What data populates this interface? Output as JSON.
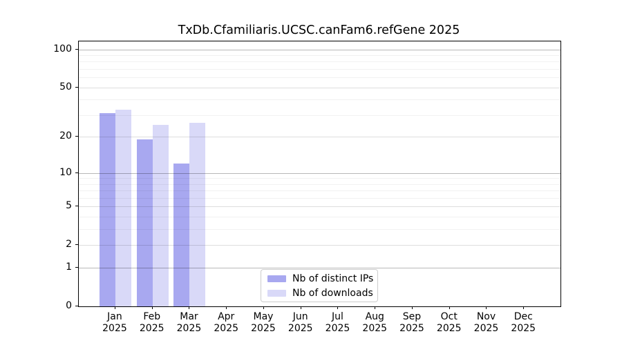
{
  "title": "TxDb.Cfamiliaris.UCSC.canFam6.refGene 2025",
  "chart_data": {
    "type": "bar",
    "title": "TxDb.Cfamiliaris.UCSC.canFam6.refGene 2025",
    "months": [
      "Jan",
      "Feb",
      "Mar",
      "Apr",
      "May",
      "Jun",
      "Jul",
      "Aug",
      "Sep",
      "Oct",
      "Nov",
      "Dec"
    ],
    "year": "2025",
    "series": [
      {
        "name": "Nb of distinct IPs",
        "color": "#a8a8f0",
        "values": [
          31,
          19,
          12,
          0,
          0,
          0,
          0,
          0,
          0,
          0,
          0,
          0
        ]
      },
      {
        "name": "Nb of downloads",
        "color": "#d9d9f8",
        "values": [
          33,
          25,
          26,
          0,
          0,
          0,
          0,
          0,
          0,
          0,
          0,
          0
        ]
      }
    ],
    "y_ticks": [
      0,
      1,
      2,
      5,
      10,
      20,
      50,
      100
    ],
    "y_decade_gridlines": [
      1,
      10,
      100
    ],
    "y_mid_gridlines": [
      2,
      5,
      20,
      50
    ],
    "y_minor_gridlines": [
      3,
      4,
      6,
      7,
      8,
      9,
      30,
      40,
      60,
      70,
      80,
      90
    ],
    "y_scale": "log10(1+y)",
    "ylim": [
      0,
      116
    ],
    "grid": "horizontal major+minor, drawn over bars",
    "legend_position": "lower center"
  }
}
